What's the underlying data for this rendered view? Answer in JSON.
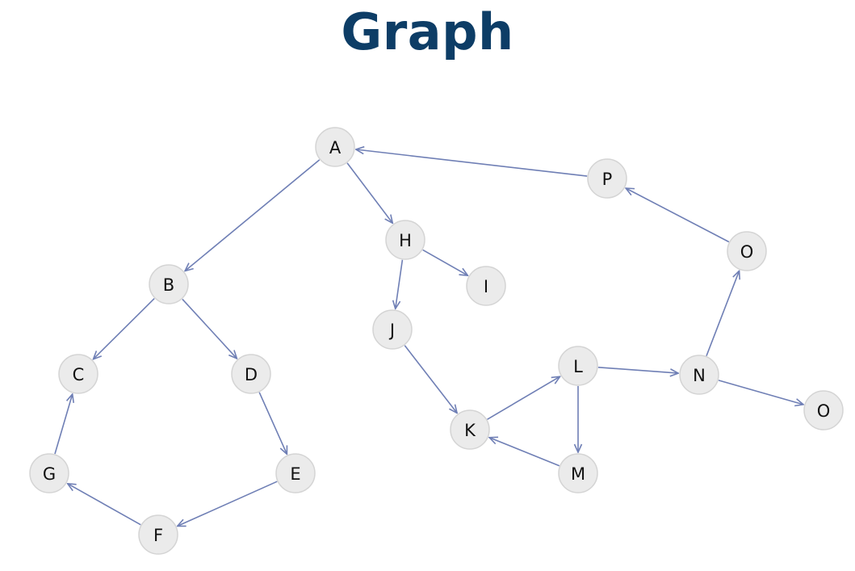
{
  "title": "Graph",
  "colors": {
    "title": "#0d3d66",
    "edge": "#6f7fb5",
    "node_fill": "#ebebeb",
    "node_stroke": "#d4d4d4"
  },
  "nodes": [
    {
      "id": "A",
      "label": "A"
    },
    {
      "id": "P",
      "label": "P"
    },
    {
      "id": "H",
      "label": "H"
    },
    {
      "id": "I",
      "label": "I"
    },
    {
      "id": "O1",
      "label": "O"
    },
    {
      "id": "B",
      "label": "B"
    },
    {
      "id": "J",
      "label": "J"
    },
    {
      "id": "C",
      "label": "C"
    },
    {
      "id": "D",
      "label": "D"
    },
    {
      "id": "L",
      "label": "L"
    },
    {
      "id": "N",
      "label": "N"
    },
    {
      "id": "O2",
      "label": "O"
    },
    {
      "id": "K",
      "label": "K"
    },
    {
      "id": "G",
      "label": "G"
    },
    {
      "id": "E",
      "label": "E"
    },
    {
      "id": "M",
      "label": "M"
    },
    {
      "id": "F",
      "label": "F"
    }
  ],
  "edges": [
    {
      "from": "A",
      "to": "B"
    },
    {
      "from": "A",
      "to": "H"
    },
    {
      "from": "P",
      "to": "A"
    },
    {
      "from": "H",
      "to": "I"
    },
    {
      "from": "H",
      "to": "J"
    },
    {
      "from": "B",
      "to": "C"
    },
    {
      "from": "B",
      "to": "D"
    },
    {
      "from": "D",
      "to": "E"
    },
    {
      "from": "E",
      "to": "F"
    },
    {
      "from": "F",
      "to": "G"
    },
    {
      "from": "G",
      "to": "C"
    },
    {
      "from": "J",
      "to": "K"
    },
    {
      "from": "K",
      "to": "L"
    },
    {
      "from": "L",
      "to": "M"
    },
    {
      "from": "M",
      "to": "K"
    },
    {
      "from": "L",
      "to": "N"
    },
    {
      "from": "N",
      "to": "O1"
    },
    {
      "from": "N",
      "to": "O2"
    },
    {
      "from": "O1",
      "to": "P"
    }
  ]
}
